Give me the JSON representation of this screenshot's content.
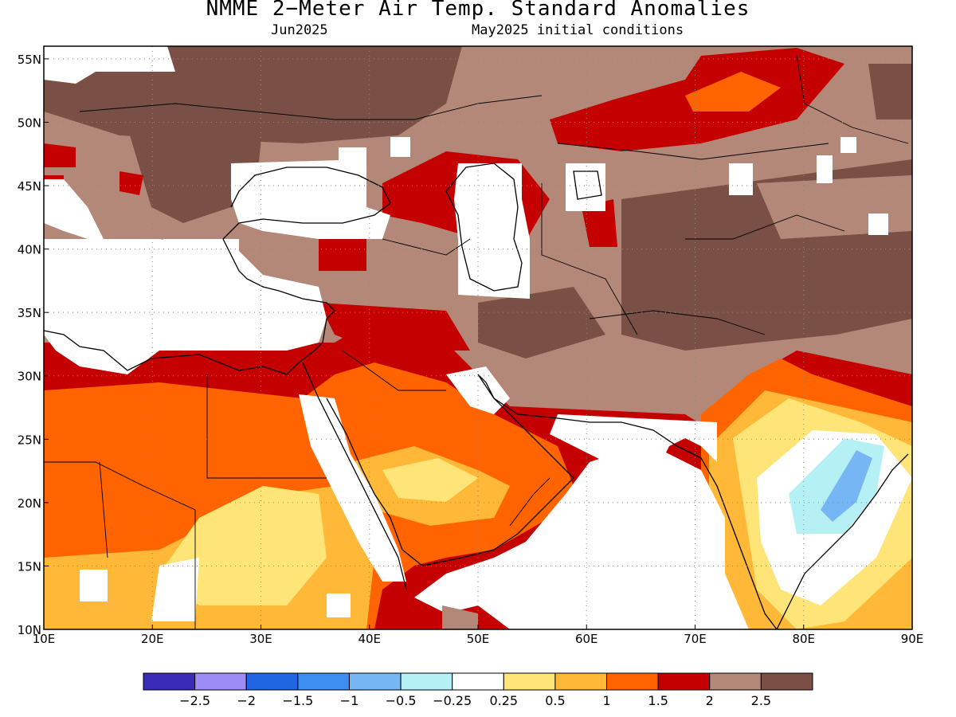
{
  "title": "NMME 2−Meter Air Temp. Standard Anomalies",
  "subtitle_left": "Jun2025",
  "subtitle_right": "May2025 initial conditions",
  "map": {
    "lon_range": [
      10,
      90
    ],
    "lat_range": [
      10,
      56
    ],
    "lon_ticks": [
      "10E",
      "20E",
      "30E",
      "40E",
      "50E",
      "60E",
      "70E",
      "80E",
      "90E"
    ],
    "lat_ticks": [
      "10N",
      "15N",
      "20N",
      "25N",
      "30N",
      "35N",
      "40N",
      "45N",
      "50N",
      "55N"
    ]
  },
  "colorbar": {
    "colors": [
      "#3a2bb8",
      "#9e8cf5",
      "#1f66e0",
      "#3d8ef0",
      "#76b6f5",
      "#b4f0f4",
      "#ffffff",
      "#ffe478",
      "#ffb838",
      "#ff6400",
      "#c40000",
      "#b48878",
      "#7a5046"
    ],
    "labels": [
      "−2.5",
      "−2",
      "−1.5",
      "−1",
      "−0.5",
      "−0.25",
      "0.25",
      "0.5",
      "1",
      "1.5",
      "2",
      "2.5"
    ]
  }
}
